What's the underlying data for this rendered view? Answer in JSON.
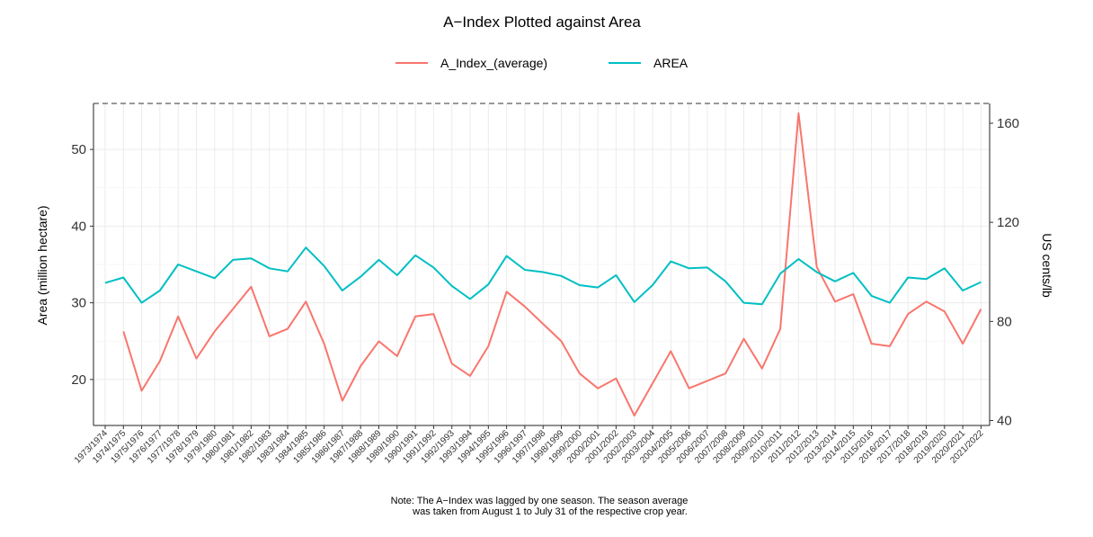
{
  "chart_data": {
    "type": "line",
    "title": "A−Index Plotted against Area",
    "ylabel_left": "Area (million hectare)",
    "ylabel_right": "US cents/lb",
    "note_line1": "Note: The A−Index was lagged by one season. The season average",
    "note_line2": "was taken from August 1 to July 31 of the respective crop year.",
    "legend_position": "top",
    "grid": true,
    "ylim_left": [
      14,
      56
    ],
    "yticks_left": [
      20,
      30,
      40,
      50
    ],
    "ylim_right": [
      38,
      168
    ],
    "yticks_right": [
      40,
      80,
      120,
      160
    ],
    "categories": [
      "1973/1974",
      "1974/1975",
      "1975/1976",
      "1976/1977",
      "1977/1978",
      "1978/1979",
      "1979/1980",
      "1980/1981",
      "1981/1982",
      "1982/1983",
      "1983/1984",
      "1984/1985",
      "1985/1986",
      "1986/1987",
      "1987/1988",
      "1988/1989",
      "1989/1990",
      "1990/1991",
      "1991/1992",
      "1992/1993",
      "1993/1994",
      "1994/1995",
      "1995/1996",
      "1996/1997",
      "1997/1998",
      "1998/1999",
      "1999/2000",
      "2000/2001",
      "2001/2002",
      "2002/2003",
      "2003/2004",
      "2004/2005",
      "2005/2006",
      "2006/2007",
      "2007/2008",
      "2008/2009",
      "2009/2010",
      "2010/2011",
      "2011/2012",
      "2012/2013",
      "2013/2014",
      "2014/2015",
      "2015/2016",
      "2016/2017",
      "2017/2018",
      "2018/2019",
      "2019/2020",
      "2020/2021",
      "2021/2022"
    ],
    "series": [
      {
        "name": "A_Index_(average)",
        "color": "#F8766D",
        "axis": "right",
        "values": [
          null,
          76,
          52,
          64,
          82,
          65,
          76,
          85,
          94,
          74,
          77,
          88,
          71,
          48,
          62,
          72,
          66,
          82,
          83,
          63,
          58,
          70,
          92,
          86,
          79,
          72,
          59,
          53,
          57,
          42,
          55,
          68,
          53,
          56,
          59,
          73,
          61,
          77,
          164,
          102,
          88,
          91,
          71,
          70,
          83,
          88,
          84,
          71,
          85
        ]
      },
      {
        "name": "AREA",
        "color": "#00BFC4",
        "axis": "left",
        "values": [
          32.6,
          33.3,
          30.0,
          31.6,
          35.0,
          34.1,
          33.2,
          35.6,
          35.8,
          34.5,
          34.1,
          37.2,
          34.8,
          31.6,
          33.4,
          35.6,
          33.6,
          36.2,
          34.6,
          32.2,
          30.5,
          32.4,
          36.1,
          34.3,
          34.0,
          33.5,
          32.3,
          32.0,
          33.6,
          30.1,
          32.3,
          35.4,
          34.5,
          34.6,
          32.8,
          30.0,
          29.8,
          33.8,
          35.7,
          34.0,
          32.8,
          33.9,
          30.9,
          30.0,
          33.3,
          33.1,
          34.5,
          31.6,
          32.7
        ]
      }
    ]
  }
}
